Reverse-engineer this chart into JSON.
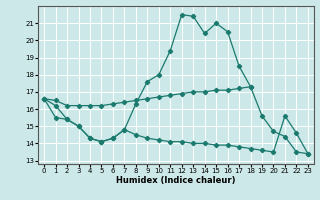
{
  "xlabel": "Humidex (Indice chaleur)",
  "background_color": "#cde8e8",
  "grid_color": "#ffffff",
  "line_color": "#1a7a6e",
  "xlim": [
    -0.5,
    23.5
  ],
  "ylim": [
    12.8,
    22.0
  ],
  "yticks": [
    13,
    14,
    15,
    16,
    17,
    18,
    19,
    20,
    21
  ],
  "xticks": [
    0,
    1,
    2,
    3,
    4,
    5,
    6,
    7,
    8,
    9,
    10,
    11,
    12,
    13,
    14,
    15,
    16,
    17,
    18,
    19,
    20,
    21,
    22,
    23
  ],
  "series1": [
    16.6,
    16.2,
    15.4,
    15.0,
    14.3,
    14.1,
    14.3,
    14.8,
    16.3,
    17.6,
    18.0,
    19.4,
    21.5,
    21.4,
    20.4,
    21.0,
    20.5,
    18.5,
    17.3,
    15.6,
    14.7,
    14.4,
    13.5,
    13.4
  ],
  "series2": [
    16.6,
    16.5,
    16.2,
    16.2,
    16.2,
    16.2,
    16.3,
    16.4,
    16.5,
    16.6,
    16.7,
    16.8,
    16.9,
    17.0,
    17.0,
    17.1,
    17.1,
    17.2,
    17.3,
    null,
    null,
    null,
    null,
    null
  ],
  "series3": [
    16.6,
    15.5,
    15.4,
    15.0,
    14.3,
    14.1,
    14.3,
    14.8,
    14.5,
    14.3,
    14.2,
    14.1,
    14.1,
    14.0,
    14.0,
    13.9,
    13.9,
    13.8,
    13.7,
    13.6,
    13.5,
    15.6,
    14.6,
    13.4
  ]
}
